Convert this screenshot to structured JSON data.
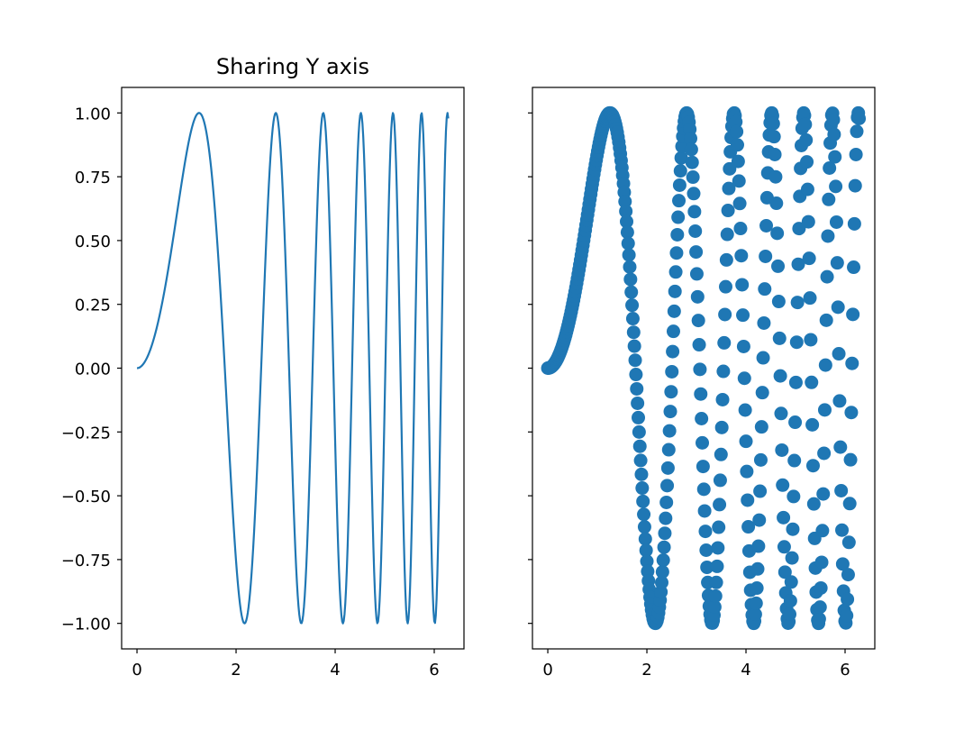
{
  "chart_data": [
    {
      "type": "line",
      "title": "Sharing Y axis",
      "xlabel": "",
      "ylabel": "",
      "function": "y = sin(x^2)",
      "x_range": [
        0,
        6.2832
      ],
      "samples": 400,
      "xlim": [
        -0.31,
        6.6
      ],
      "ylim": [
        -1.1,
        1.1
      ],
      "xticks": [
        0,
        2,
        4,
        6
      ],
      "xtick_labels": [
        "0",
        "2",
        "4",
        "6"
      ],
      "yticks": [
        -1.0,
        -0.75,
        -0.5,
        -0.25,
        0.0,
        0.25,
        0.5,
        0.75,
        1.0
      ],
      "ytick_labels": [
        "−1.00",
        "−0.75",
        "−0.50",
        "−0.25",
        "0.00",
        "0.25",
        "0.50",
        "0.75",
        "1.00"
      ],
      "grid": false,
      "color": "#1f77b4"
    },
    {
      "type": "scatter",
      "title": "",
      "xlabel": "",
      "ylabel": "",
      "function": "y = sin(x^2)",
      "x_range": [
        0,
        6.2832
      ],
      "samples": 400,
      "xlim": [
        -0.31,
        6.6
      ],
      "ylim": [
        -1.1,
        1.1
      ],
      "xticks": [
        0,
        2,
        4,
        6
      ],
      "xtick_labels": [
        "0",
        "2",
        "4",
        "6"
      ],
      "yticks": [
        -1.0,
        -0.75,
        -0.5,
        -0.25,
        0.0,
        0.25,
        0.5,
        0.75,
        1.0
      ],
      "ytick_labels": [
        "",
        "",
        "",
        "",
        "",
        "",
        "",
        "",
        ""
      ],
      "shared_y": true,
      "grid": false,
      "color": "#1f77b4"
    }
  ]
}
